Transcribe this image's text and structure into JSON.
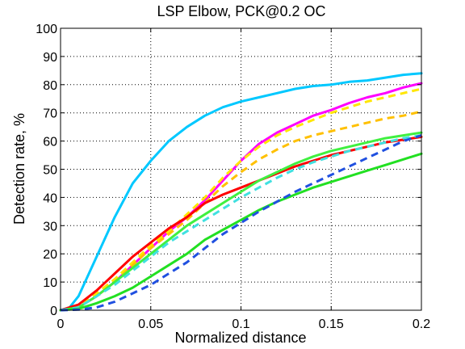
{
  "chart_data": {
    "type": "line",
    "title": "LSP Elbow, PCK@0.2 OC",
    "xlabel": "Normalized distance",
    "ylabel": "Detection rate, %",
    "xlim": [
      0,
      0.2
    ],
    "ylim": [
      0,
      100
    ],
    "xticks": [
      "0",
      "0.05",
      "0.1",
      "0.15",
      "0.2"
    ],
    "yticks": [
      "0",
      "10",
      "20",
      "30",
      "40",
      "50",
      "60",
      "70",
      "80",
      "90",
      "100"
    ],
    "xtick_values": [
      0,
      0.05,
      0.1,
      0.15,
      0.2
    ],
    "ytick_values": [
      0,
      10,
      20,
      30,
      40,
      50,
      60,
      70,
      80,
      90,
      100
    ],
    "grid": true,
    "series": [
      {
        "color": "#00c8ff",
        "style": "solid",
        "x": [
          0,
          0.005,
          0.01,
          0.02,
          0.03,
          0.04,
          0.05,
          0.06,
          0.07,
          0.08,
          0.09,
          0.1,
          0.11,
          0.12,
          0.13,
          0.14,
          0.15,
          0.16,
          0.17,
          0.18,
          0.19,
          0.2
        ],
        "y": [
          0,
          1,
          5,
          19,
          33,
          45,
          53,
          60,
          65,
          69,
          72,
          74,
          75.5,
          77,
          78.5,
          79.5,
          80,
          81,
          81.5,
          82.5,
          83.5,
          84
        ]
      },
      {
        "color": "#ff00ff",
        "style": "solid",
        "x": [
          0,
          0.01,
          0.02,
          0.03,
          0.04,
          0.05,
          0.06,
          0.07,
          0.08,
          0.09,
          0.1,
          0.11,
          0.12,
          0.13,
          0.14,
          0.15,
          0.16,
          0.17,
          0.18,
          0.19,
          0.2
        ],
        "y": [
          0,
          1,
          5,
          10,
          16,
          22,
          28,
          33,
          39,
          46,
          53,
          59,
          63,
          66,
          69,
          71,
          73.5,
          75.5,
          77,
          79,
          80.5
        ]
      },
      {
        "color": "#ffe600",
        "style": "dashed",
        "x": [
          0,
          0.01,
          0.02,
          0.03,
          0.04,
          0.05,
          0.06,
          0.07,
          0.08,
          0.09,
          0.1,
          0.11,
          0.12,
          0.13,
          0.14,
          0.15,
          0.16,
          0.17,
          0.18,
          0.19,
          0.2
        ],
        "y": [
          0,
          1,
          6,
          11,
          17,
          23,
          28,
          34,
          40,
          47,
          53,
          58,
          62,
          65,
          67.5,
          70,
          72,
          74,
          75.5,
          77,
          78.5
        ]
      },
      {
        "color": "#ffc000",
        "style": "dashed",
        "x": [
          0,
          0.01,
          0.02,
          0.03,
          0.04,
          0.05,
          0.06,
          0.07,
          0.08,
          0.09,
          0.1,
          0.11,
          0.12,
          0.13,
          0.14,
          0.15,
          0.16,
          0.17,
          0.18,
          0.19,
          0.2
        ],
        "y": [
          0,
          1,
          5,
          10,
          16,
          22,
          27,
          32,
          38,
          44,
          49,
          53.5,
          57,
          60,
          62,
          63.5,
          65,
          66.5,
          68,
          69,
          70.5
        ]
      },
      {
        "color": "#ff0000",
        "style": "solid",
        "x": [
          0,
          0.01,
          0.02,
          0.03,
          0.04,
          0.05,
          0.06,
          0.07,
          0.08,
          0.09,
          0.1,
          0.11,
          0.12,
          0.13,
          0.14,
          0.15,
          0.16,
          0.17,
          0.18,
          0.19,
          0.2
        ],
        "y": [
          0,
          2,
          7,
          13,
          19,
          24,
          29,
          33,
          38,
          41,
          43.5,
          46,
          48.5,
          51,
          53,
          55,
          56.5,
          58,
          59.5,
          60.5,
          61.5
        ]
      },
      {
        "color": "#40f040",
        "style": "solid",
        "x": [
          0,
          0.01,
          0.02,
          0.03,
          0.04,
          0.05,
          0.06,
          0.07,
          0.08,
          0.09,
          0.1,
          0.11,
          0.12,
          0.13,
          0.14,
          0.15,
          0.16,
          0.17,
          0.18,
          0.19,
          0.2
        ],
        "y": [
          0,
          1,
          5,
          10,
          15,
          20,
          25,
          30,
          34,
          38,
          42,
          46,
          49,
          52,
          54.5,
          56.5,
          58,
          59.5,
          61,
          62,
          63
        ]
      },
      {
        "color": "#40e0e0",
        "style": "dashed",
        "x": [
          0,
          0.01,
          0.02,
          0.03,
          0.04,
          0.05,
          0.06,
          0.07,
          0.08,
          0.09,
          0.1,
          0.11,
          0.12,
          0.13,
          0.14,
          0.15,
          0.16,
          0.17,
          0.18,
          0.19,
          0.2
        ],
        "y": [
          0,
          1,
          5,
          9,
          14,
          19,
          24,
          28,
          32,
          36,
          40,
          43.5,
          47,
          50,
          52.5,
          54.5,
          56.5,
          58,
          59.5,
          61,
          62
        ]
      },
      {
        "color": "#22e022",
        "style": "solid",
        "x": [
          0,
          0.01,
          0.02,
          0.03,
          0.04,
          0.05,
          0.06,
          0.07,
          0.08,
          0.09,
          0.1,
          0.11,
          0.12,
          0.13,
          0.14,
          0.15,
          0.16,
          0.17,
          0.18,
          0.19,
          0.2
        ],
        "y": [
          0,
          0.5,
          2.5,
          5,
          8,
          12,
          16,
          20,
          25,
          28.5,
          32,
          35.5,
          38.5,
          41,
          43.5,
          45.5,
          47.5,
          49.5,
          51.5,
          53.5,
          55.5
        ]
      },
      {
        "color": "#2050e0",
        "style": "dashed",
        "x": [
          0,
          0.01,
          0.02,
          0.03,
          0.04,
          0.05,
          0.06,
          0.07,
          0.08,
          0.09,
          0.1,
          0.11,
          0.12,
          0.13,
          0.14,
          0.15,
          0.16,
          0.17,
          0.18,
          0.19,
          0.2
        ],
        "y": [
          0,
          0.2,
          1,
          3,
          6,
          9,
          13,
          17,
          22,
          27,
          31,
          35,
          38.5,
          42,
          45,
          48,
          51,
          54,
          57,
          60,
          62
        ]
      }
    ]
  }
}
